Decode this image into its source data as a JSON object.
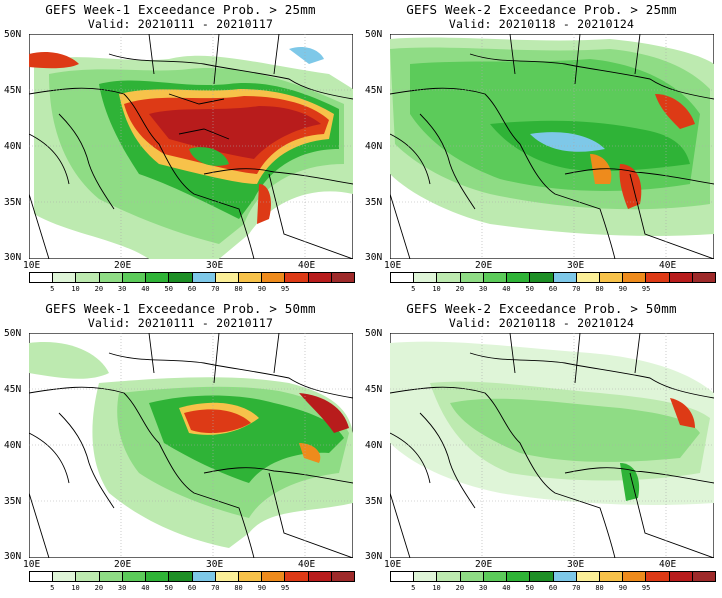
{
  "colors": {
    "levels": [
      "#ffffff",
      "#dff5d8",
      "#bdeab0",
      "#8fdc85",
      "#5ccb5a",
      "#2fb337",
      "#1e8f26",
      "#7ec8e8",
      "#fbef98",
      "#f7c24a",
      "#ee8b1c",
      "#dd3a16",
      "#b81c1c",
      "#9e2a2a"
    ],
    "land_bg": "#ffffff"
  },
  "colorbar_labels": [
    "5",
    "10",
    "20",
    "30",
    "40",
    "50",
    "60",
    "70",
    "80",
    "90",
    "95"
  ],
  "lat_labels": [
    "50N",
    "45N",
    "40N",
    "35N",
    "30N"
  ],
  "lon_labels": [
    "10E",
    "20E",
    "30E",
    "40E"
  ],
  "panels": [
    {
      "title": "GEFS Week-1 Exceedance Prob. > 25mm",
      "valid": "Valid: 20210111 - 20210117"
    },
    {
      "title": "GEFS Week-2 Exceedance Prob. > 25mm",
      "valid": "Valid: 20210118 - 20210124"
    },
    {
      "title": "GEFS Week-1 Exceedance Prob. > 50mm",
      "valid": "Valid: 20210111 - 20210117"
    },
    {
      "title": "GEFS Week-2 Exceedance Prob. > 50mm",
      "valid": "Valid: 20210118 - 20210124"
    }
  ]
}
